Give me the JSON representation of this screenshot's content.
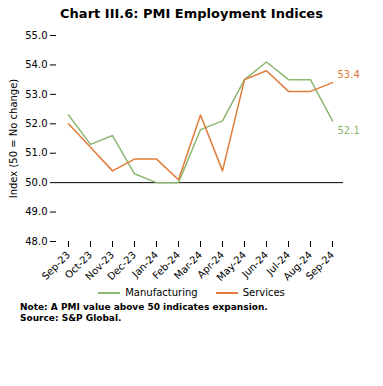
{
  "chart_data": {
    "type": "line",
    "title": "Chart III.6: PMI Employment Indices",
    "categories": [
      "Sep-23",
      "Oct-23",
      "Nov-23",
      "Dec-23",
      "Jan-24",
      "Feb-24",
      "Mar-24",
      "Apr-24",
      "May-24",
      "Jun-24",
      "Jul-24",
      "Aug-24",
      "Sep-24"
    ],
    "series": [
      {
        "name": "Manufacturing",
        "color": "#8db870",
        "values": [
          52.3,
          51.3,
          51.6,
          50.3,
          50.0,
          50.0,
          51.8,
          52.1,
          53.5,
          54.1,
          53.5,
          53.5,
          52.1
        ]
      },
      {
        "name": "Services",
        "color": "#e07b39",
        "values": [
          52.0,
          51.2,
          50.4,
          50.8,
          50.8,
          50.1,
          52.3,
          50.4,
          53.5,
          53.8,
          53.1,
          53.1,
          53.4
        ]
      }
    ],
    "ylabel": "Index (50 = No change)",
    "ylim": [
      48,
      55
    ],
    "yticks": [
      48,
      49,
      50,
      51,
      52,
      53,
      54,
      55
    ],
    "hline": 50,
    "annotations": [
      {
        "text": "53.4",
        "x": "Sep-24",
        "y": 53.4,
        "color": "#e07b39"
      },
      {
        "text": "52.1",
        "x": "Sep-24",
        "y": 52.1,
        "color": "#8db870"
      }
    ],
    "note": "Note: A PMI value above 50 indicates expansion.",
    "source": "Source: S&P Global.",
    "legend": "bottom",
    "grid": false
  }
}
